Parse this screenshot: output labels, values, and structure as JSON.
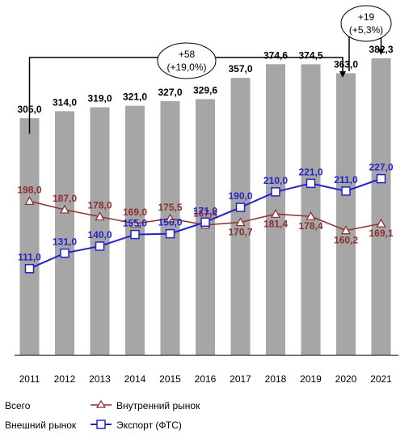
{
  "chart_data": {
    "type": "bar",
    "categories": [
      "2011",
      "2012",
      "2013",
      "2014",
      "2015",
      "2016",
      "2017",
      "2018",
      "2019",
      "2020",
      "2021"
    ],
    "ylim": [
      0,
      400
    ],
    "grid": false,
    "legend_position": "bottom-left",
    "series": [
      {
        "name": "Всего",
        "type": "bar",
        "color": "#a6a6a6",
        "values": [
          305.0,
          314.0,
          319.0,
          321.0,
          327.0,
          329.6,
          357.0,
          374.6,
          374.5,
          363.0,
          382.3
        ],
        "labels": [
          "305,0",
          "314,0",
          "319,0",
          "321,0",
          "327,0",
          "329,6",
          "357,0",
          "374,6",
          "374,5",
          "363,0",
          "382,3"
        ]
      },
      {
        "name": "Внешний рынок",
        "type": "legend-only",
        "color": "#a6a6a6"
      },
      {
        "name": "Внутренний рынок",
        "type": "line",
        "marker": "triangle",
        "color": "#8b2f2f",
        "values": [
          198.0,
          187.0,
          178.0,
          169.0,
          175.5,
          167.4,
          170.7,
          181.4,
          178.4,
          160.2,
          169.1
        ],
        "labels": [
          "198,0",
          "187,0",
          "178,0",
          "169,0",
          "175,5",
          "167,4",
          "170,7",
          "181,4",
          "178,4",
          "160,2",
          "169,1"
        ]
      },
      {
        "name": "Экспорт (ФТС)",
        "type": "line",
        "marker": "square",
        "color": "#2323c8",
        "values": [
          111.0,
          131.0,
          140.0,
          155.0,
          156.0,
          171.0,
          190.0,
          210.0,
          221.0,
          211.0,
          227.0
        ],
        "labels": [
          "111,0",
          "131,0",
          "140,0",
          "155,0",
          "156,0",
          "171,0",
          "190,0",
          "210,0",
          "221,0",
          "211,0",
          "227,0"
        ]
      }
    ],
    "annotations": [
      {
        "from": "2011",
        "to": "2020",
        "line1": "+58",
        "line2": "(+19,0%)"
      },
      {
        "from": "2020",
        "to": "2021",
        "line1": "+19",
        "line2": "(+5,3%)"
      }
    ]
  }
}
